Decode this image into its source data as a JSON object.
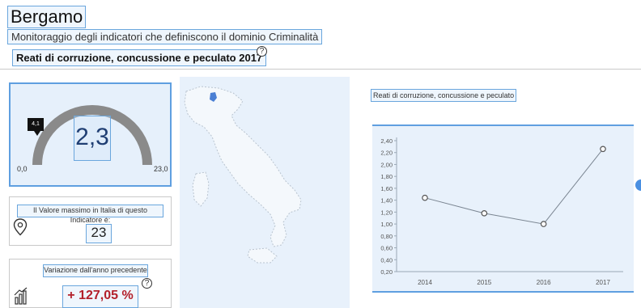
{
  "header": {
    "city": "Bergamo",
    "subtitle": "Monitoraggio degli indicatori che definiscono il dominio Criminalità",
    "indicator": "Reati di corruzione, concussione e peculato 2017"
  },
  "gauge": {
    "value_label": "2,3",
    "min_label": "0,0",
    "max_label": "23,0",
    "flag_label": "4,1",
    "value": 2.3,
    "min": 0,
    "max": 23
  },
  "max_card": {
    "label": "Il Valore massimo in Italia di questo Indicatore è:",
    "value": "23"
  },
  "variation_card": {
    "label": "Variazione dall'anno precedente",
    "value": "+ 127,05 %"
  },
  "icons": {
    "help": "help-icon",
    "pin": "location-pin-icon",
    "chart": "bar-chart-icon"
  },
  "colors": {
    "accent": "#5f9fe0",
    "gauge_arc": "#8a8a8a",
    "negative_value": "#b3202a",
    "map_highlight": "#4a7fd4"
  },
  "chart_title": "Reati di corruzione, concussione e peculato",
  "chart_data": {
    "type": "line",
    "title": "Reati di corruzione, concussione e peculato",
    "x": [
      "2014",
      "2015",
      "2016",
      "2017"
    ],
    "series": [
      {
        "values": [
          1.44,
          1.18,
          1.0,
          2.26
        ]
      }
    ],
    "ylim": [
      0.2,
      2.4
    ],
    "yticks": [
      "0,20",
      "0,40",
      "0,60",
      "0,80",
      "1,00",
      "1,20",
      "1,40",
      "1,60",
      "1,80",
      "2,00",
      "2,20",
      "2,40"
    ],
    "grid": false,
    "legend": "none"
  }
}
